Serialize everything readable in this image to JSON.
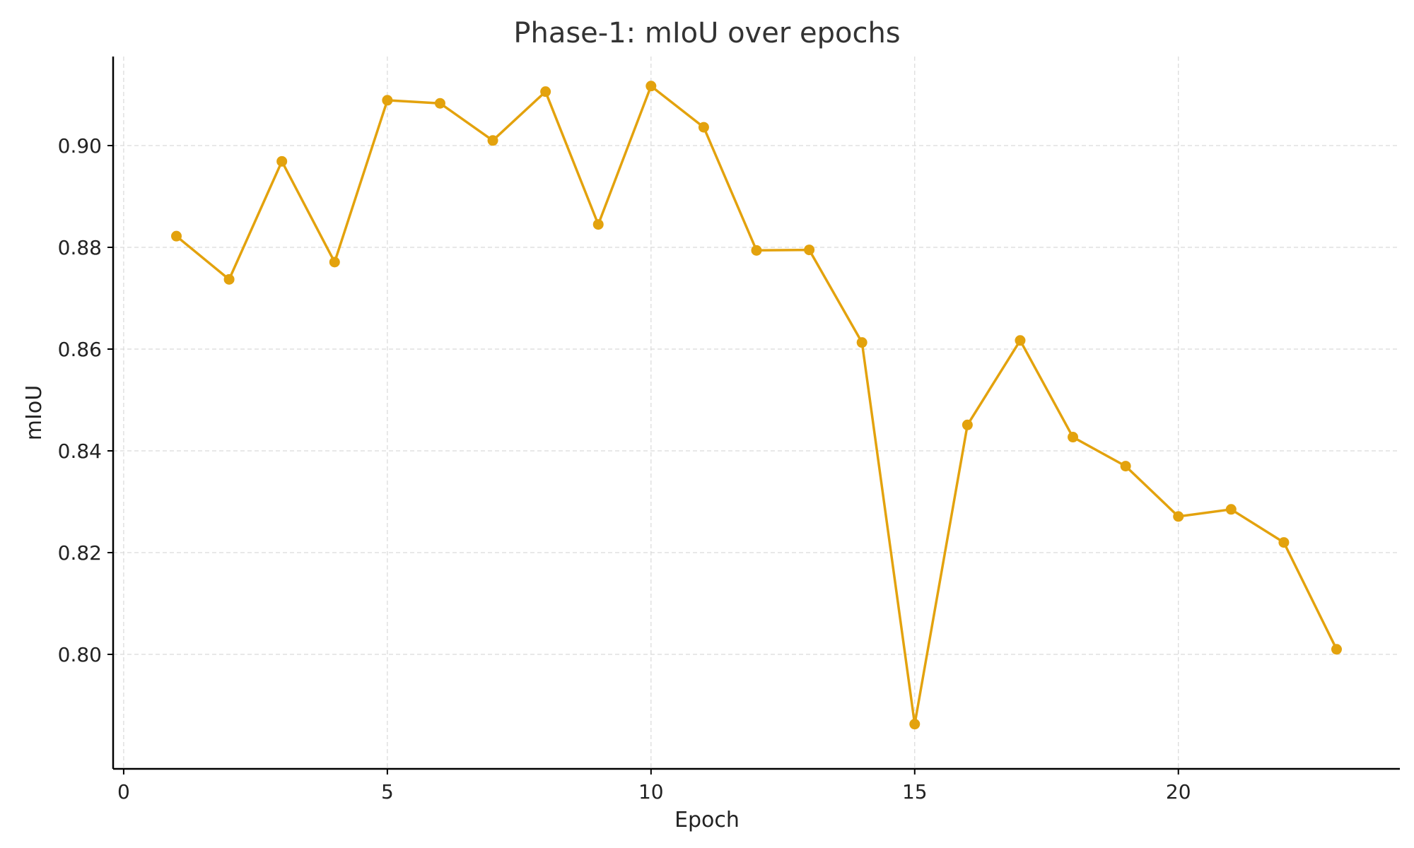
{
  "chart_data": {
    "type": "line",
    "title": "Phase-1: mIoU over epochs",
    "xlabel": "Epoch",
    "ylabel": "mIoU",
    "xlim": [
      -0.2,
      24.2
    ],
    "ylim": [
      0.7775,
      0.9175
    ],
    "x_ticks": [
      0,
      5,
      10,
      15,
      20
    ],
    "x_tick_labels": [
      "0",
      "5",
      "10",
      "15",
      "20"
    ],
    "y_ticks": [
      0.8,
      0.82,
      0.84,
      0.86,
      0.88,
      0.9
    ],
    "y_tick_labels": [
      "0.80",
      "0.82",
      "0.84",
      "0.86",
      "0.88",
      "0.90"
    ],
    "grid": true,
    "series": [
      {
        "name": "mIoU",
        "color": "#E3A20D",
        "x": [
          1,
          2,
          3,
          4,
          5,
          6,
          7,
          8,
          9,
          10,
          11,
          12,
          13,
          14,
          15,
          16,
          17,
          18,
          19,
          20,
          21,
          22,
          23
        ],
        "values": [
          0.8822,
          0.8737,
          0.8969,
          0.8771,
          0.9089,
          0.9083,
          0.901,
          0.9106,
          0.8845,
          0.9117,
          0.9036,
          0.8794,
          0.8795,
          0.8613,
          0.7863,
          0.8451,
          0.8617,
          0.8427,
          0.837,
          0.8271,
          0.8285,
          0.822,
          0.801
        ]
      }
    ]
  }
}
